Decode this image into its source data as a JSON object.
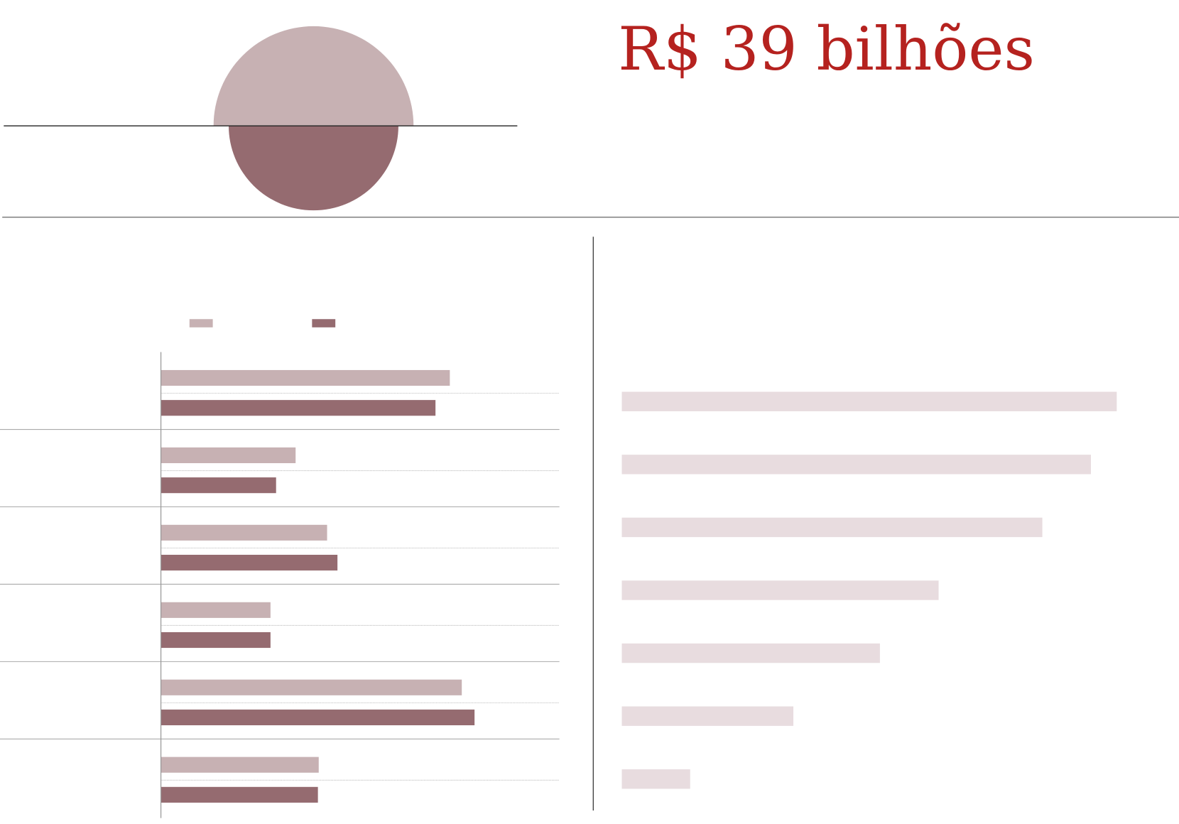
{
  "title": "R$ 39 bilhões",
  "chart_data": [
    {
      "type": "semicircles",
      "values": [
        100,
        72
      ],
      "colors": [
        "#c7b1b3",
        "#956b70"
      ]
    },
    {
      "type": "barh",
      "categories": [
        null,
        null,
        null,
        null,
        null,
        null
      ],
      "series": [
        {
          "color": "#c7b1b3",
          "values": [
            72.5,
            33.8,
            41.7,
            27.5,
            75.5,
            39.6
          ]
        },
        {
          "color": "#956b70",
          "values": [
            68.9,
            28.9,
            44.3,
            27.5,
            78.7,
            39.4
          ]
        }
      ],
      "xlim": [
        0,
        100
      ]
    },
    {
      "type": "barh",
      "categories": [
        null,
        null,
        null,
        null,
        null,
        null,
        null
      ],
      "values": [
        97.8,
        92.7,
        83.1,
        62.6,
        51,
        33.9,
        13.5
      ],
      "color": "#e8dcdf",
      "xlim": [
        0,
        100
      ]
    }
  ]
}
